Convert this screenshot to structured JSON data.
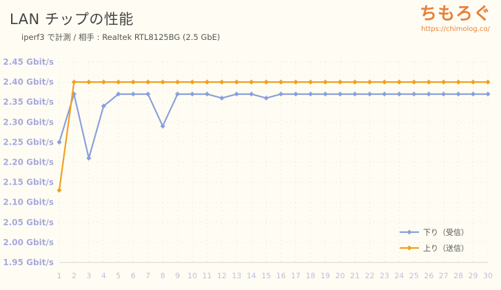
{
  "title": "LAN チップの性能",
  "subtitle": "iperf3 で計測  /  相手 : Realtek RTL8125BG (2.5 GbE)",
  "logo": {
    "text": "ちもろぐ",
    "url": "https://chimolog.co/"
  },
  "chart_data": {
    "type": "line",
    "x": [
      1,
      2,
      3,
      4,
      5,
      6,
      7,
      8,
      9,
      10,
      11,
      12,
      13,
      14,
      15,
      16,
      17,
      18,
      19,
      20,
      21,
      22,
      23,
      24,
      25,
      26,
      27,
      28,
      29,
      30
    ],
    "y_ticks": [
      "1.95 Gbit/s",
      "2.00 Gbit/s",
      "2.05 Gbit/s",
      "2.10 Gbit/s",
      "2.15 Gbit/s",
      "2.20 Gbit/s",
      "2.25 Gbit/s",
      "2.30 Gbit/s",
      "2.35 Gbit/s",
      "2.40 Gbit/s",
      "2.45 Gbit/s"
    ],
    "ylim": [
      1.95,
      2.45
    ],
    "grid": true,
    "legend_position": "bottom-right",
    "series": [
      {
        "name": "下り（受信）",
        "color": "#8a9fdc",
        "values": [
          2.25,
          2.37,
          2.21,
          2.34,
          2.37,
          2.37,
          2.37,
          2.29,
          2.37,
          2.37,
          2.37,
          2.36,
          2.37,
          2.37,
          2.36,
          2.37,
          2.37,
          2.37,
          2.37,
          2.37,
          2.37,
          2.37,
          2.37,
          2.37,
          2.37,
          2.37,
          2.37,
          2.37,
          2.37,
          2.37
        ]
      },
      {
        "name": "上り（送信）",
        "color": "#f0a020",
        "values": [
          2.13,
          2.4,
          2.4,
          2.4,
          2.4,
          2.4,
          2.4,
          2.4,
          2.4,
          2.4,
          2.4,
          2.4,
          2.4,
          2.4,
          2.4,
          2.4,
          2.4,
          2.4,
          2.4,
          2.4,
          2.4,
          2.4,
          2.4,
          2.4,
          2.4,
          2.4,
          2.4,
          2.4,
          2.4,
          2.4
        ]
      }
    ]
  }
}
